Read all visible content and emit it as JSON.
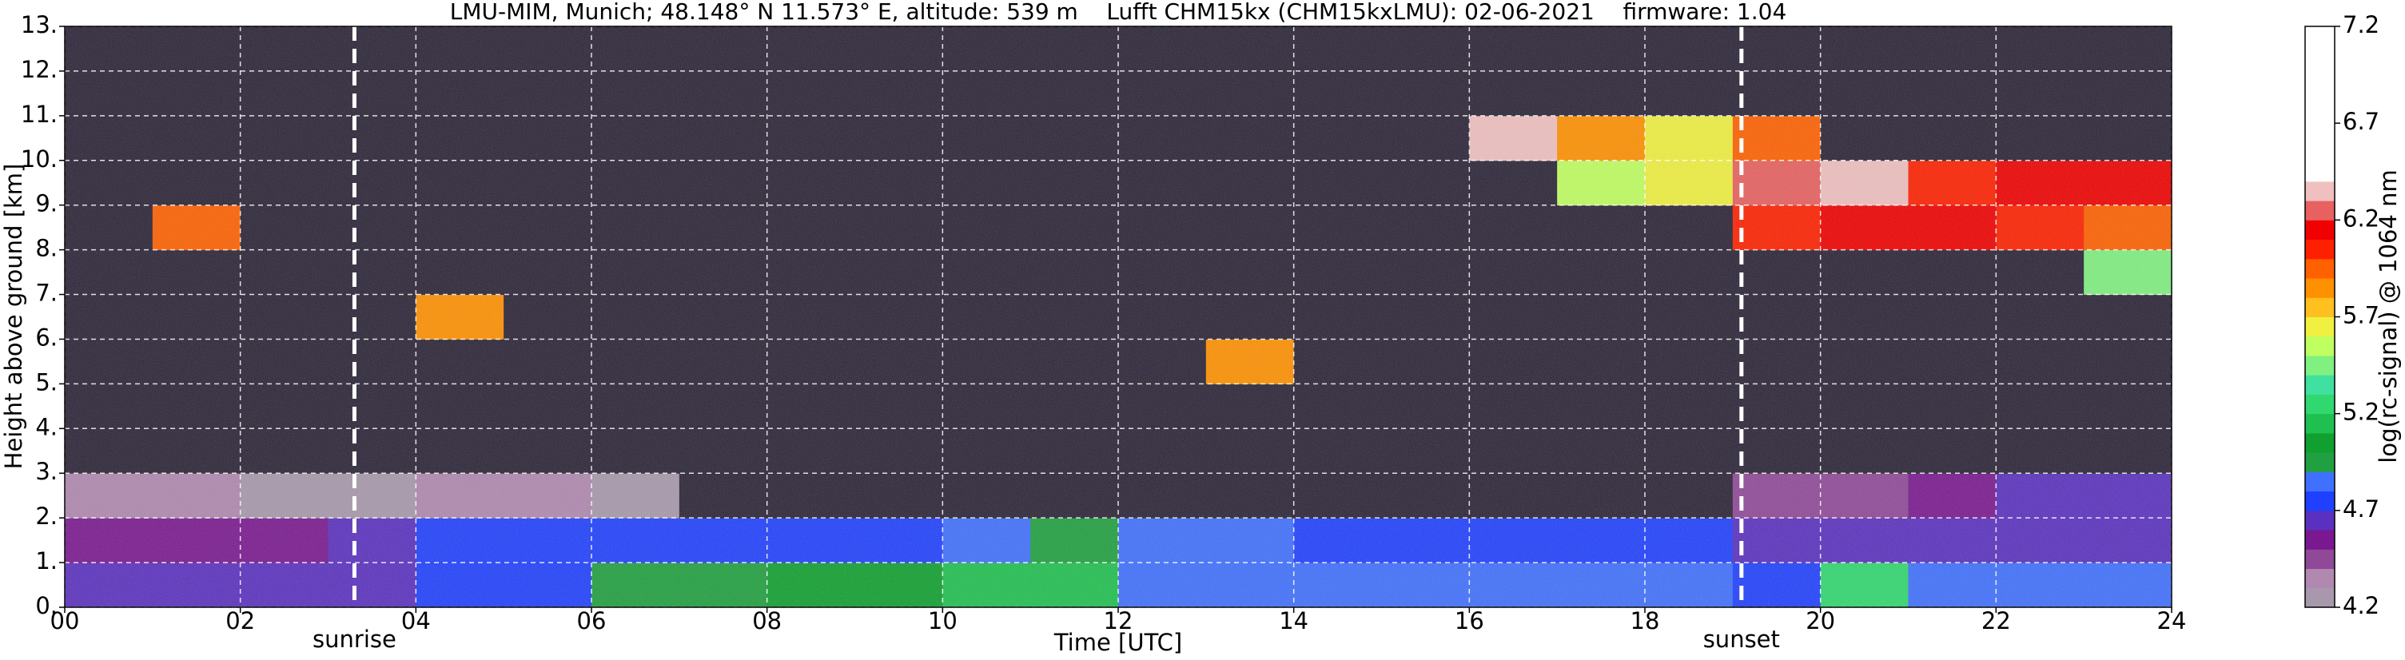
{
  "chart_data": {
    "type": "heatmap",
    "title": "LMU-MIM, Munich; 48.148° N 11.573° E, altitude: 539 m    Lufft CHM15kx (CHM15kxLMU): 02-06-2021    firmware: 1.04",
    "x_label": "Time [UTC]",
    "y_label": "Height above ground [km]",
    "xlim": [
      0,
      24
    ],
    "ylim": [
      0,
      13
    ],
    "xticks": [
      {
        "value": 0,
        "label": "00"
      },
      {
        "value": 2,
        "label": "02"
      },
      {
        "value": 4,
        "label": "04"
      },
      {
        "value": 6,
        "label": "06"
      },
      {
        "value": 8,
        "label": "08"
      },
      10,
      12,
      14,
      16,
      18,
      20,
      22,
      24
    ],
    "yticks": [
      {
        "value": 0,
        "label": "0."
      },
      {
        "value": 1,
        "label": "1."
      },
      {
        "value": 2,
        "label": "2."
      },
      {
        "value": 3,
        "label": "3."
      },
      {
        "value": 4,
        "label": "4."
      },
      {
        "value": 5,
        "label": "5."
      },
      {
        "value": 6,
        "label": "6."
      },
      {
        "value": 7,
        "label": "7."
      },
      {
        "value": 8,
        "label": "8."
      },
      {
        "value": 9,
        "label": "9."
      },
      {
        "value": 10,
        "label": "10."
      },
      {
        "value": 11,
        "label": "11."
      },
      {
        "value": 12,
        "label": "12."
      },
      {
        "value": 13,
        "label": "13."
      }
    ],
    "grid": true,
    "xbins": [
      0,
      1,
      2,
      3,
      4,
      5,
      6,
      7,
      8,
      9,
      10,
      11,
      12,
      13,
      14,
      15,
      16,
      17,
      18,
      19,
      20,
      21,
      22,
      23,
      24
    ],
    "ybins": [
      0,
      1,
      2,
      3,
      4,
      5,
      6,
      7,
      8,
      9,
      10,
      11,
      12,
      13
    ],
    "z": [
      [
        4.6,
        4.6,
        4.6,
        4.65,
        4.7,
        4.7,
        4.9,
        4.9,
        5.0,
        5.0,
        5.1,
        5.1,
        4.8,
        4.8,
        4.8,
        4.8,
        4.8,
        4.8,
        4.8,
        4.75,
        5.2,
        4.8,
        4.8,
        4.8
      ],
      [
        4.5,
        4.5,
        4.5,
        4.6,
        4.75,
        4.75,
        4.75,
        4.75,
        4.75,
        4.75,
        4.8,
        4.9,
        4.8,
        4.8,
        4.75,
        4.75,
        4.7,
        4.7,
        4.7,
        4.6,
        4.6,
        4.65,
        4.65,
        4.65
      ],
      [
        4.3,
        4.3,
        4.2,
        4.2,
        4.3,
        4.3,
        4.2,
        3.9,
        3.9,
        3.9,
        3.9,
        3.9,
        3.9,
        3.9,
        3.9,
        3.9,
        3.9,
        3.9,
        3.9,
        4.4,
        4.45,
        4.5,
        4.6,
        4.6
      ],
      [
        3.9,
        3.9,
        3.9,
        3.9,
        3.9,
        3.9,
        3.9,
        3.9,
        3.9,
        3.9,
        3.9,
        3.9,
        3.9,
        3.9,
        3.9,
        3.9,
        3.9,
        3.9,
        3.9,
        3.9,
        3.9,
        3.9,
        3.9,
        3.9
      ],
      [
        3.9,
        3.9,
        3.9,
        3.9,
        3.9,
        3.9,
        3.9,
        3.9,
        3.9,
        3.9,
        3.9,
        3.9,
        3.9,
        3.9,
        3.9,
        3.9,
        3.9,
        3.9,
        3.9,
        3.9,
        3.9,
        3.9,
        3.9,
        3.9
      ],
      [
        3.9,
        3.9,
        3.9,
        3.9,
        3.9,
        3.9,
        3.9,
        3.9,
        3.9,
        3.9,
        3.9,
        3.9,
        3.9,
        5.8,
        3.9,
        3.9,
        3.9,
        3.9,
        3.9,
        3.9,
        3.9,
        3.9,
        3.9,
        3.9
      ],
      [
        3.9,
        3.9,
        3.9,
        3.9,
        5.8,
        3.9,
        3.9,
        3.9,
        3.9,
        3.9,
        3.9,
        3.9,
        3.9,
        3.9,
        3.9,
        3.9,
        3.9,
        3.9,
        3.9,
        3.9,
        3.9,
        3.9,
        3.9,
        3.9
      ],
      [
        3.9,
        3.9,
        3.9,
        3.9,
        3.9,
        3.9,
        3.9,
        3.9,
        3.9,
        3.9,
        3.9,
        3.9,
        3.9,
        3.9,
        3.9,
        3.9,
        3.9,
        3.9,
        3.9,
        3.9,
        3.9,
        3.9,
        3.9,
        5.4
      ],
      [
        3.9,
        5.9,
        3.9,
        3.9,
        3.9,
        3.9,
        3.9,
        3.9,
        3.9,
        3.9,
        3.9,
        3.9,
        3.9,
        3.9,
        3.9,
        3.9,
        3.9,
        3.9,
        3.9,
        6.0,
        6.1,
        6.1,
        6.0,
        5.9
      ],
      [
        3.9,
        3.9,
        3.9,
        3.9,
        3.9,
        3.9,
        3.9,
        3.9,
        3.9,
        3.9,
        3.9,
        3.9,
        3.9,
        3.9,
        3.9,
        3.9,
        3.9,
        5.5,
        5.6,
        6.2,
        6.3,
        6.0,
        6.1,
        6.1
      ],
      [
        3.9,
        3.9,
        3.9,
        3.9,
        3.9,
        3.9,
        3.9,
        3.9,
        3.9,
        3.9,
        3.9,
        3.9,
        3.9,
        3.9,
        3.9,
        3.9,
        6.3,
        5.8,
        5.6,
        5.9,
        3.9,
        3.9,
        3.9,
        3.9
      ],
      [
        3.9,
        3.9,
        3.9,
        3.9,
        3.9,
        3.9,
        3.9,
        3.9,
        3.9,
        3.9,
        3.9,
        3.9,
        3.9,
        3.9,
        3.9,
        3.9,
        3.9,
        3.9,
        3.9,
        3.9,
        3.9,
        3.9,
        3.9,
        3.9
      ],
      [
        3.9,
        3.9,
        3.9,
        3.9,
        3.9,
        3.9,
        3.9,
        3.9,
        3.9,
        3.9,
        3.9,
        3.9,
        3.9,
        3.9,
        3.9,
        3.9,
        3.9,
        3.9,
        3.9,
        3.9,
        3.9,
        3.9,
        3.9,
        3.9
      ]
    ],
    "annotations": [
      {
        "text": "sunrise",
        "x": 3.3
      },
      {
        "text": "sunset",
        "x": 19.1
      }
    ],
    "colorbar": {
      "label": "log(rc-signal) @ 1064 nm",
      "clim": [
        4.2,
        7.2
      ],
      "ticks": [
        4.2,
        4.7,
        5.2,
        5.7,
        6.2,
        6.7,
        7.2
      ],
      "under_color": "#2a2236",
      "colors": [
        "#a898ac",
        "#b088b0",
        "#904898",
        "#7a1890",
        "#5a30c0",
        "#2040ff",
        "#4070ff",
        "#20a040",
        "#10a030",
        "#20c050",
        "#30d870",
        "#40e0a0",
        "#80f080",
        "#c0ff60",
        "#f0f040",
        "#ffc020",
        "#ff9000",
        "#ff6000",
        "#ff2000",
        "#f00000",
        "#e86060",
        "#f0c0c0",
        "#ffffff",
        "#ffffff",
        "#ffffff",
        "#ffffff",
        "#ffffff",
        "#ffffff",
        "#ffffff",
        "#ffffff"
      ]
    }
  }
}
